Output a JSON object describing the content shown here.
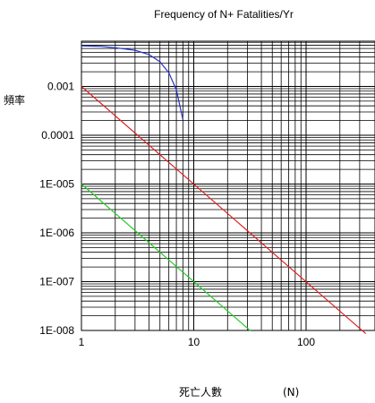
{
  "chart_data": {
    "type": "line",
    "title": "Frequency of N+ Fatalities/Yr",
    "ylabel": "頻率",
    "xlabel": "死亡人數",
    "xlabel_unit": "(N)",
    "x_scale": "log",
    "y_scale": "log",
    "xlim": [
      1,
      340
    ],
    "ylim": [
      1e-08,
      0.008
    ],
    "grid": true,
    "x_ticks": [
      {
        "value": 1,
        "label": "1"
      },
      {
        "value": 10,
        "label": "10"
      },
      {
        "value": 100,
        "label": "100"
      }
    ],
    "y_ticks": [
      {
        "value": 0.001,
        "label": "0.001"
      },
      {
        "value": 0.0001,
        "label": "0.0001"
      },
      {
        "value": 1e-05,
        "label": "1E-005"
      },
      {
        "value": 1e-06,
        "label": "1E-006"
      },
      {
        "value": 1e-07,
        "label": "1E-007"
      },
      {
        "value": 1e-08,
        "label": "1E-008"
      }
    ],
    "series": [
      {
        "color": "#2233cc",
        "points": [
          [
            1,
            0.0068
          ],
          [
            1.5,
            0.0066
          ],
          [
            2,
            0.0062
          ],
          [
            3,
            0.0055
          ],
          [
            4,
            0.0045
          ],
          [
            5,
            0.0032
          ],
          [
            6,
            0.0019
          ],
          [
            7,
            0.00085
          ],
          [
            8,
            0.00021
          ]
        ]
      },
      {
        "color": "#e02020",
        "points": [
          [
            1,
            0.001
          ],
          [
            340,
            8.6e-09
          ]
        ]
      },
      {
        "color": "#22cc22",
        "points": [
          [
            1,
            1e-05
          ],
          [
            32,
            9.8e-09
          ]
        ]
      }
    ]
  }
}
